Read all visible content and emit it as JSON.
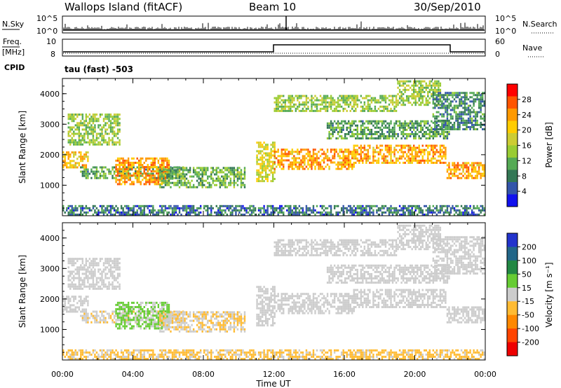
{
  "header": {
    "station": "Wallops Island (fitACF)",
    "beam": "Beam 10",
    "date": "30/Sep/2010"
  },
  "top_panels": {
    "nsky_label": "N.Sky",
    "nsky_ticks": [
      "10^5",
      "10^0"
    ],
    "nsearch_label": "N.Search",
    "nsearch_ticks": [
      "10^5",
      "10^0"
    ],
    "freq_label": "Freq.",
    "freq_unit": "[MHz]",
    "freq_ticks": [
      "10",
      "8"
    ],
    "nave_label": "Nave",
    "nave_ticks": [
      "60",
      "0"
    ],
    "cpid_label": "CPID",
    "cpid_value": "tau (fast) -503"
  },
  "legend_power": {
    "title": "Power [dB]",
    "ticks": [
      "28",
      "24",
      "20",
      "16",
      "12",
      "8",
      "4"
    ],
    "colors": [
      "#ff0000",
      "#ff5500",
      "#ff9900",
      "#ffcc00",
      "#cccc33",
      "#99cc33",
      "#55aa55",
      "#337755",
      "#3355aa",
      "#1111ee"
    ]
  },
  "legend_velocity": {
    "title": "Velocity [m s⁻¹]",
    "ticks": [
      "200",
      "100",
      "50",
      "15",
      "-15",
      "-50",
      "-100",
      "-200"
    ],
    "colors": [
      "#2233cc",
      "#226688",
      "#228844",
      "#66cc33",
      "#cccccc",
      "#ffbb33",
      "#ff8800",
      "#ff4400",
      "#ee0000"
    ]
  },
  "chart_data": [
    {
      "type": "heatmap",
      "ylabel": "Slant Range [km]",
      "xlabel": "",
      "x_ticks": [],
      "ylim": [
        0,
        4500
      ],
      "y_ticks": [
        1000,
        2000,
        3000,
        4000
      ],
      "colorbar": "Power [dB]",
      "color_range": [
        0,
        32
      ]
    },
    {
      "type": "heatmap",
      "ylabel": "Slant Range [km]",
      "xlabel": "Time UT",
      "x_ticks": [
        "00:00",
        "04:00",
        "08:00",
        "12:00",
        "16:00",
        "20:00",
        "00:00"
      ],
      "ylim": [
        0,
        4500
      ],
      "y_ticks": [
        1000,
        2000,
        3000,
        4000
      ],
      "colorbar": "Velocity [m s⁻¹]",
      "color_range": [
        -250,
        250
      ]
    }
  ]
}
